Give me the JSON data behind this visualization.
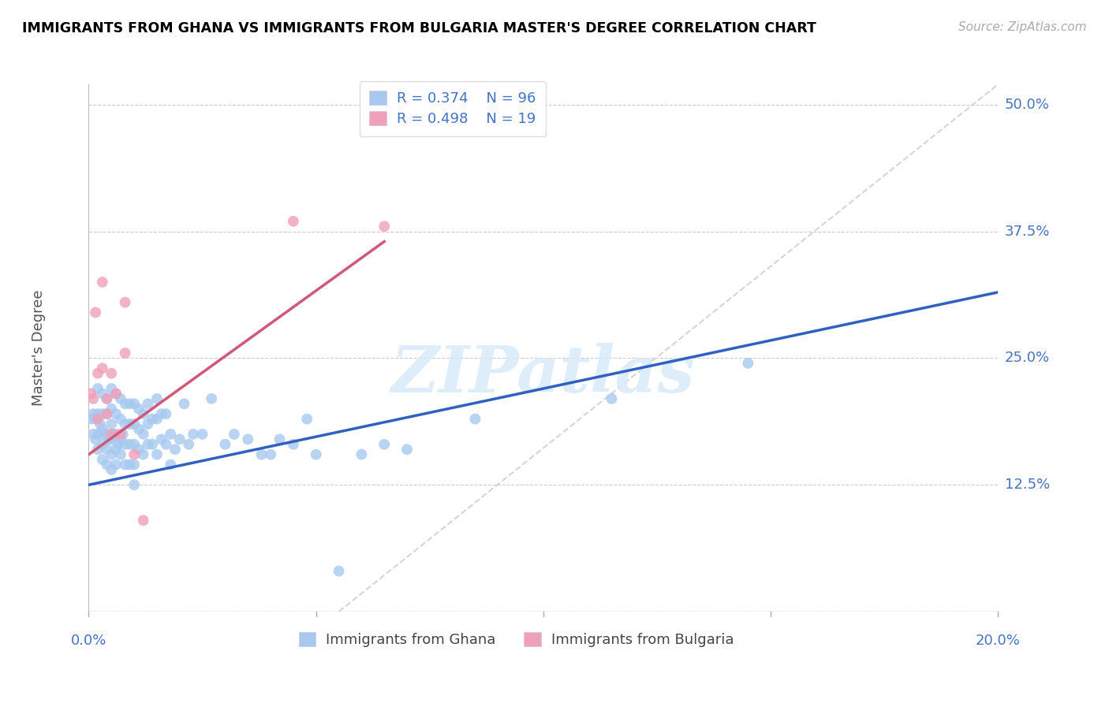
{
  "title": "IMMIGRANTS FROM GHANA VS IMMIGRANTS FROM BULGARIA MASTER'S DEGREE CORRELATION CHART",
  "source": "Source: ZipAtlas.com",
  "ylabel": "Master's Degree",
  "xlim": [
    0.0,
    0.2
  ],
  "ylim": [
    0.0,
    0.52
  ],
  "ghana_color": "#a8c8f0",
  "bulgaria_color": "#f0a0b8",
  "ghana_line_color": "#3060c0",
  "bulgaria_line_color": "#d05878",
  "dashed_line_color": "#d0d0d8",
  "axis_color": "#4472c4",
  "watermark_color": "#d8eaf8",
  "legend_upper_ghana": "R = 0.374    N = 96",
  "legend_upper_bulgaria": "R = 0.498    N = 19",
  "legend_bottom_ghana": "Immigrants from Ghana",
  "legend_bottom_bulgaria": "Immigrants from Bulgaria",
  "ghana_line_x0": 0.0,
  "ghana_line_y0": 0.125,
  "ghana_line_x1": 0.2,
  "ghana_line_y1": 0.315,
  "bulgaria_line_x0": 0.0,
  "bulgaria_line_y0": 0.155,
  "bulgaria_line_x1": 0.065,
  "bulgaria_line_y1": 0.365,
  "dashed_line_x0": 0.055,
  "dashed_line_y0": 0.0,
  "dashed_line_x1": 0.2,
  "dashed_line_y1": 0.52,
  "ghana_x": [
    0.0005,
    0.001,
    0.001,
    0.0015,
    0.0015,
    0.002,
    0.002,
    0.002,
    0.002,
    0.0025,
    0.003,
    0.003,
    0.003,
    0.003,
    0.003,
    0.0035,
    0.004,
    0.004,
    0.004,
    0.004,
    0.004,
    0.0045,
    0.005,
    0.005,
    0.005,
    0.005,
    0.005,
    0.005,
    0.0055,
    0.006,
    0.006,
    0.006,
    0.006,
    0.006,
    0.0065,
    0.007,
    0.007,
    0.007,
    0.007,
    0.0075,
    0.008,
    0.008,
    0.008,
    0.008,
    0.009,
    0.009,
    0.009,
    0.009,
    0.01,
    0.01,
    0.01,
    0.01,
    0.01,
    0.011,
    0.011,
    0.011,
    0.012,
    0.012,
    0.012,
    0.013,
    0.013,
    0.013,
    0.014,
    0.014,
    0.015,
    0.015,
    0.015,
    0.016,
    0.016,
    0.017,
    0.017,
    0.018,
    0.018,
    0.019,
    0.02,
    0.021,
    0.022,
    0.023,
    0.025,
    0.027,
    0.03,
    0.032,
    0.035,
    0.038,
    0.04,
    0.042,
    0.045,
    0.048,
    0.05,
    0.055,
    0.06,
    0.065,
    0.07,
    0.085,
    0.115,
    0.145
  ],
  "ghana_y": [
    0.19,
    0.195,
    0.175,
    0.19,
    0.17,
    0.22,
    0.195,
    0.175,
    0.16,
    0.185,
    0.215,
    0.195,
    0.18,
    0.165,
    0.15,
    0.175,
    0.21,
    0.195,
    0.175,
    0.16,
    0.145,
    0.17,
    0.22,
    0.2,
    0.185,
    0.17,
    0.155,
    0.14,
    0.175,
    0.215,
    0.195,
    0.175,
    0.16,
    0.145,
    0.165,
    0.21,
    0.19,
    0.17,
    0.155,
    0.175,
    0.205,
    0.185,
    0.165,
    0.145,
    0.205,
    0.185,
    0.165,
    0.145,
    0.205,
    0.185,
    0.165,
    0.145,
    0.125,
    0.2,
    0.18,
    0.16,
    0.195,
    0.175,
    0.155,
    0.205,
    0.185,
    0.165,
    0.19,
    0.165,
    0.21,
    0.19,
    0.155,
    0.195,
    0.17,
    0.195,
    0.165,
    0.175,
    0.145,
    0.16,
    0.17,
    0.205,
    0.165,
    0.175,
    0.175,
    0.21,
    0.165,
    0.175,
    0.17,
    0.155,
    0.155,
    0.17,
    0.165,
    0.19,
    0.155,
    0.04,
    0.155,
    0.165,
    0.16,
    0.19,
    0.21,
    0.245
  ],
  "bulgaria_x": [
    0.0005,
    0.001,
    0.0015,
    0.002,
    0.002,
    0.003,
    0.003,
    0.004,
    0.004,
    0.005,
    0.005,
    0.006,
    0.007,
    0.008,
    0.008,
    0.01,
    0.012,
    0.045,
    0.065
  ],
  "bulgaria_y": [
    0.215,
    0.21,
    0.295,
    0.235,
    0.19,
    0.325,
    0.24,
    0.21,
    0.195,
    0.235,
    0.175,
    0.215,
    0.175,
    0.305,
    0.255,
    0.155,
    0.09,
    0.385,
    0.38
  ]
}
